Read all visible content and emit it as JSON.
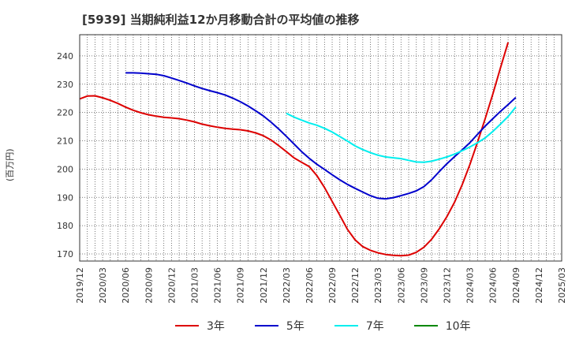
{
  "chart_data": {
    "type": "line",
    "title": "[5939]  当期純利益12か月移動合計の平均値の推移",
    "ylabel": "(百万円)",
    "xlabel": "",
    "ylim": [
      167.5,
      247.5
    ],
    "yticks": [
      170,
      180,
      190,
      200,
      210,
      220,
      230,
      240
    ],
    "xticks": [
      "2019/12",
      "2020/03",
      "2020/06",
      "2020/09",
      "2020/12",
      "2021/03",
      "2021/06",
      "2021/09",
      "2021/12",
      "2022/03",
      "2022/06",
      "2022/09",
      "2022/12",
      "2023/03",
      "2023/06",
      "2023/09",
      "2023/12",
      "2024/03",
      "2024/06",
      "2024/09",
      "2024/12",
      "2025/03"
    ],
    "grid": true,
    "legend_position": "bottom",
    "series": [
      {
        "name": "3年",
        "color": "#dd0000",
        "start_index": 0,
        "values": [
          224.8,
          225.8,
          225.9,
          225.2,
          224.3,
          223.2,
          221.9,
          220.8,
          219.9,
          219.2,
          218.7,
          218.3,
          218.1,
          217.8,
          217.3,
          216.7,
          215.9,
          215.3,
          214.8,
          214.4,
          214.1,
          213.9,
          213.5,
          212.8,
          211.8,
          210.3,
          208.3,
          206.2,
          204.0,
          202.4,
          200.9,
          197.7,
          193.5,
          188.6,
          183.7,
          178.7,
          175.0,
          172.6,
          171.3,
          170.4,
          169.8,
          169.5,
          169.4,
          169.6,
          170.6,
          172.4,
          175.2,
          178.9,
          183.2,
          188.3,
          194.5,
          201.6,
          209.5,
          217.8,
          226.5,
          235.8,
          244.8
        ]
      },
      {
        "name": "5年",
        "color": "#0000cc",
        "start_index": 6,
        "values": [
          234.0,
          234.0,
          233.9,
          233.7,
          233.5,
          233.0,
          232.2,
          231.3,
          230.4,
          229.4,
          228.5,
          227.7,
          227.0,
          226.2,
          225.1,
          223.8,
          222.3,
          220.6,
          218.8,
          216.6,
          214.2,
          211.6,
          208.9,
          206.2,
          203.8,
          201.7,
          199.9,
          198.0,
          196.2,
          194.6,
          193.2,
          191.9,
          190.6,
          189.7,
          189.5,
          189.9,
          190.6,
          191.4,
          192.3,
          193.8,
          196.2,
          199.1,
          201.9,
          204.4,
          206.8,
          209.3,
          212.3,
          215.2,
          217.8,
          220.4,
          222.8,
          225.3
        ]
      },
      {
        "name": "7年",
        "color": "#00eeee",
        "start_index": 27,
        "values": [
          219.7,
          218.4,
          217.3,
          216.3,
          215.5,
          214.4,
          213.1,
          211.5,
          209.9,
          208.2,
          206.9,
          205.8,
          204.9,
          204.3,
          204.0,
          203.7,
          203.1,
          202.5,
          202.4,
          202.8,
          203.5,
          204.3,
          205.3,
          206.5,
          207.8,
          209.3,
          211.0,
          213.3,
          215.9,
          218.6,
          221.9
        ]
      },
      {
        "name": "10年",
        "color": "#008800",
        "start_index": 0,
        "values": []
      }
    ]
  }
}
